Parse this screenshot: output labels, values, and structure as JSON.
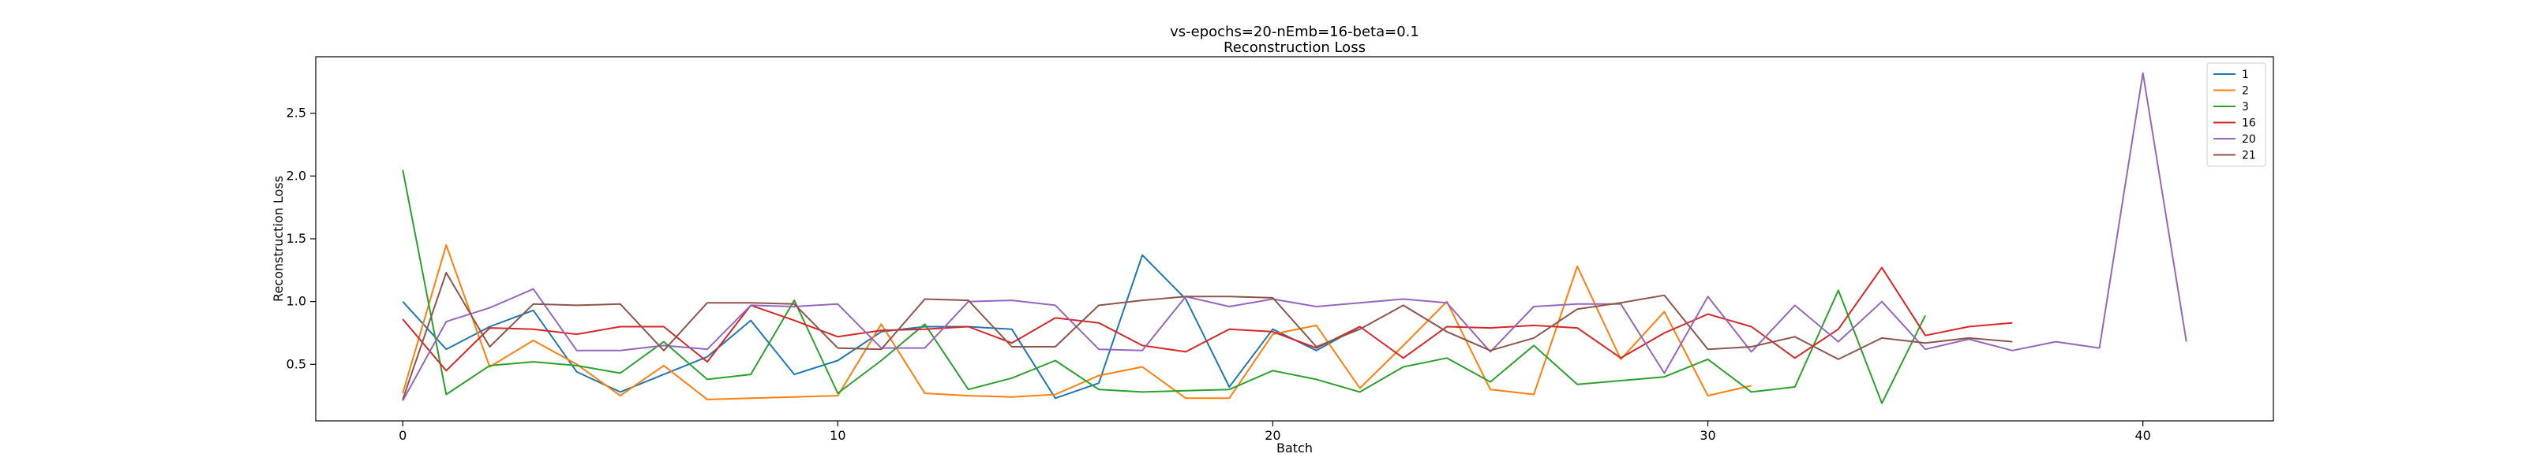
{
  "chart_data": {
    "type": "line",
    "title": "vs-epochs=20-nEmb=16-beta=0.1",
    "subtitle": "Reconstruction Loss",
    "xlabel": "Batch",
    "ylabel": "Reconstruction Loss",
    "xlim": [
      -2,
      43
    ],
    "ylim": [
      0.05,
      2.95
    ],
    "xticks": [
      0,
      10,
      20,
      30,
      40
    ],
    "yticks": [
      0.5,
      1.0,
      1.5,
      2.0,
      2.5
    ],
    "xtick_labels": [
      "0",
      "10",
      "20",
      "30",
      "40"
    ],
    "ytick_labels": [
      "0.5",
      "1.0",
      "1.5",
      "2.0",
      "2.5"
    ],
    "grid": false,
    "legend_position": "top-right",
    "series": [
      {
        "name": "1",
        "color": "#1f77b4",
        "x": [
          0,
          1,
          2,
          3,
          4,
          5,
          6,
          7,
          8,
          9,
          10,
          11,
          12,
          13,
          14,
          15,
          16,
          17,
          18,
          19,
          20,
          21,
          22
        ],
        "y": [
          1.0,
          0.62,
          0.8,
          0.93,
          0.44,
          0.28,
          0.42,
          0.56,
          0.85,
          0.42,
          0.53,
          0.76,
          0.8,
          0.8,
          0.78,
          0.23,
          0.35,
          1.37,
          1.02,
          0.32,
          0.78,
          0.61,
          0.8
        ]
      },
      {
        "name": "2",
        "color": "#ff7f0e",
        "x": [
          0,
          1,
          2,
          3,
          4,
          5,
          6,
          7,
          8,
          9,
          10,
          11,
          12,
          13,
          14,
          15,
          16,
          17,
          18,
          19,
          20,
          21,
          22,
          23,
          24,
          25,
          26,
          27,
          28,
          29,
          30,
          31
        ],
        "y": [
          0.27,
          1.45,
          0.48,
          0.69,
          0.5,
          0.25,
          0.49,
          0.22,
          0.23,
          0.24,
          0.25,
          0.82,
          0.27,
          0.25,
          0.24,
          0.26,
          0.41,
          0.48,
          0.23,
          0.23,
          0.74,
          0.81,
          0.31,
          0.65,
          1.0,
          0.3,
          0.26,
          1.28,
          0.54,
          0.92,
          0.25,
          0.33
        ]
      },
      {
        "name": "3",
        "color": "#2ca02c",
        "x": [
          0,
          1,
          2,
          3,
          4,
          5,
          6,
          7,
          8,
          9,
          10,
          11,
          12,
          13,
          14,
          15,
          16,
          17,
          18,
          19,
          20,
          21,
          22,
          23,
          24,
          25,
          26,
          27,
          28,
          29,
          30,
          31,
          32,
          33,
          34,
          35
        ],
        "y": [
          2.05,
          0.26,
          0.49,
          0.52,
          0.49,
          0.43,
          0.68,
          0.38,
          0.42,
          1.01,
          0.27,
          0.53,
          0.82,
          0.3,
          0.39,
          0.53,
          0.3,
          0.28,
          0.29,
          0.3,
          0.45,
          0.38,
          0.28,
          0.48,
          0.55,
          0.36,
          0.65,
          0.34,
          0.37,
          0.4,
          0.54,
          0.28,
          0.32,
          1.09,
          0.19,
          0.89
        ]
      },
      {
        "name": "16",
        "color": "#d62728",
        "x": [
          0,
          1,
          2,
          3,
          4,
          5,
          6,
          7,
          8,
          9,
          10,
          11,
          12,
          13,
          14,
          15,
          16,
          17,
          18,
          19,
          20,
          21,
          22,
          23,
          24,
          25,
          26,
          27,
          28,
          29,
          30,
          31,
          32,
          33,
          34,
          35,
          36,
          37
        ],
        "y": [
          0.86,
          0.45,
          0.79,
          0.78,
          0.74,
          0.8,
          0.8,
          0.52,
          0.97,
          0.85,
          0.72,
          0.77,
          0.78,
          0.8,
          0.67,
          0.87,
          0.83,
          0.65,
          0.6,
          0.78,
          0.76,
          0.63,
          0.8,
          0.55,
          0.8,
          0.79,
          0.81,
          0.79,
          0.55,
          0.75,
          0.9,
          0.8,
          0.55,
          0.78,
          1.27,
          0.73,
          0.8,
          0.83
        ]
      },
      {
        "name": "20",
        "color": "#9467bd",
        "x": [
          0,
          1,
          2,
          3,
          4,
          5,
          6,
          7,
          8,
          9,
          10,
          11,
          12,
          13,
          14,
          15,
          16,
          17,
          18,
          19,
          20,
          21,
          22,
          23,
          24,
          25,
          26,
          27,
          28,
          29,
          30,
          31,
          32,
          33,
          34,
          35,
          36,
          37,
          38,
          39,
          40,
          41
        ],
        "y": [
          0.21,
          0.84,
          0.95,
          1.1,
          0.61,
          0.61,
          0.65,
          0.62,
          0.97,
          0.96,
          0.98,
          0.63,
          0.63,
          1.0,
          1.01,
          0.97,
          0.62,
          0.61,
          1.04,
          0.96,
          1.02,
          0.96,
          0.99,
          1.02,
          0.99,
          0.6,
          0.96,
          0.98,
          0.98,
          0.43,
          1.04,
          0.6,
          0.97,
          0.68,
          1.0,
          0.62,
          0.7,
          0.61,
          0.68,
          0.63,
          2.82,
          0.68
        ]
      },
      {
        "name": "21",
        "color": "#8c564b",
        "x": [
          0,
          1,
          2,
          3,
          4,
          5,
          6,
          7,
          8,
          9,
          10,
          11,
          12,
          13,
          14,
          15,
          16,
          17,
          18,
          19,
          20,
          21,
          22,
          23,
          24,
          25,
          26,
          27,
          28,
          29,
          30,
          31,
          32,
          33,
          34,
          35,
          36,
          37
        ],
        "y": [
          0.22,
          1.23,
          0.64,
          0.98,
          0.97,
          0.98,
          0.61,
          0.99,
          0.99,
          0.98,
          0.63,
          0.62,
          1.02,
          1.01,
          0.64,
          0.64,
          0.97,
          1.01,
          1.04,
          1.04,
          1.03,
          0.64,
          0.78,
          0.97,
          0.76,
          0.61,
          0.71,
          0.94,
          0.99,
          1.05,
          0.62,
          0.64,
          0.72,
          0.54,
          0.71,
          0.67,
          0.71,
          0.68
        ]
      }
    ]
  }
}
